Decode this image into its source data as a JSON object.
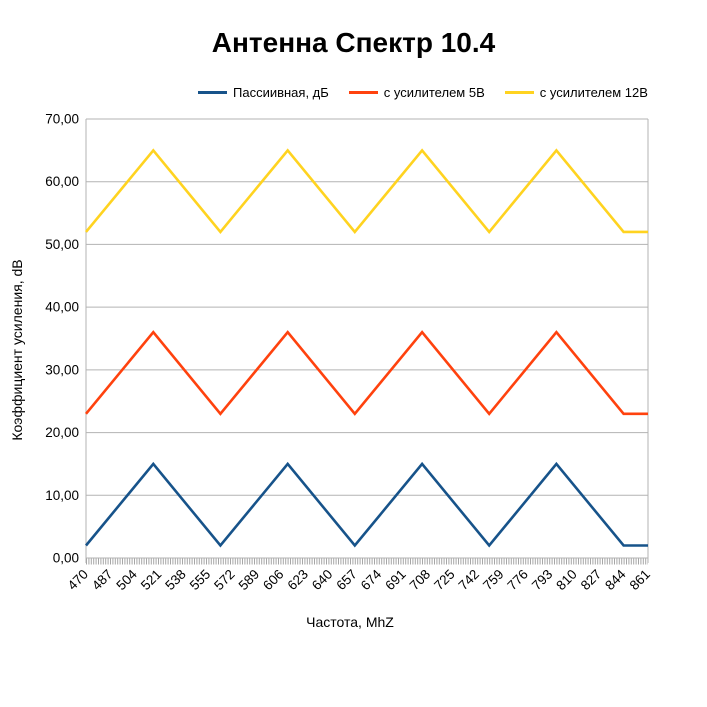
{
  "chart_data": {
    "type": "line",
    "title": "Антенна Спектр 10.4",
    "xlabel": "Частота, MhZ",
    "ylabel": "Коэффициент усиления, dB",
    "x_tick_labels": [
      "470",
      "487",
      "504",
      "521",
      "538",
      "555",
      "572",
      "589",
      "606",
      "623",
      "640",
      "657",
      "674",
      "691",
      "708",
      "725",
      "742",
      "759",
      "776",
      "793",
      "810",
      "827",
      "844",
      "861"
    ],
    "y_tick_labels": [
      "0,00",
      "10,00",
      "20,00",
      "30,00",
      "40,00",
      "50,00",
      "60,00",
      "70,00"
    ],
    "ylim": [
      0,
      70
    ],
    "x_range": [
      470,
      861
    ],
    "grid": true,
    "legend_position": "top",
    "series": [
      {
        "name": "Пассиивная, дБ",
        "color": "#17538A",
        "x": [
          470,
          516.8,
          563.5,
          610.3,
          657,
          703.8,
          750.5,
          797.3,
          844,
          861
        ],
        "y": [
          2,
          15,
          2,
          15,
          2,
          15,
          2,
          15,
          2,
          2
        ]
      },
      {
        "name": "с усилителем 5В",
        "color": "#FF420E",
        "x": [
          470,
          516.8,
          563.5,
          610.3,
          657,
          703.8,
          750.5,
          797.3,
          844,
          861
        ],
        "y": [
          23,
          36,
          23,
          36,
          23,
          36,
          23,
          36,
          23,
          23
        ]
      },
      {
        "name": "с усилителем 12В",
        "color": "#FFD320",
        "x": [
          470,
          516.8,
          563.5,
          610.3,
          657,
          703.8,
          750.5,
          797.3,
          844,
          861
        ],
        "y": [
          52,
          65,
          52,
          65,
          52,
          65,
          52,
          65,
          52,
          52
        ]
      }
    ],
    "colors": {
      "gridline": "#b3b3b3",
      "axis_tick": "#a6a6a6",
      "text": "#000000",
      "background": "#ffffff"
    }
  }
}
